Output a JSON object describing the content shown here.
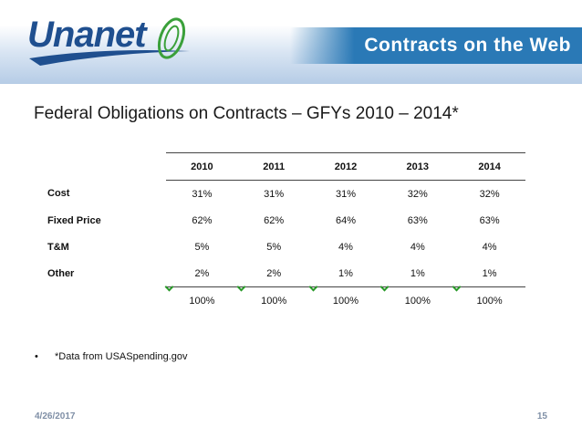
{
  "header": {
    "logo_text": "Unanet",
    "title": "Contracts on the Web"
  },
  "heading": "Federal Obligations on Contracts – GFYs 2010 – 2014*",
  "table": {
    "years": [
      "2010",
      "2011",
      "2012",
      "2013",
      "2014"
    ],
    "rows": [
      {
        "label": "Cost",
        "values": [
          "31%",
          "31%",
          "31%",
          "32%",
          "32%"
        ]
      },
      {
        "label": "Fixed Price",
        "values": [
          "62%",
          "62%",
          "64%",
          "63%",
          "63%"
        ]
      },
      {
        "label": "T&M",
        "values": [
          "5%",
          "5%",
          "4%",
          "4%",
          "4%"
        ]
      },
      {
        "label": "Other",
        "values": [
          "2%",
          "2%",
          "1%",
          "1%",
          "1%"
        ]
      }
    ],
    "totals": [
      "100%",
      "100%",
      "100%",
      "100%",
      "100%"
    ]
  },
  "note": {
    "bullet": "•",
    "text": "*Data from USASpending.gov"
  },
  "footer": {
    "date": "4/26/2017",
    "page": "15"
  },
  "colors": {
    "title_bar": "#2a79b6",
    "logo": "#1f4f8f",
    "logo_accent": "#3aa03a"
  }
}
